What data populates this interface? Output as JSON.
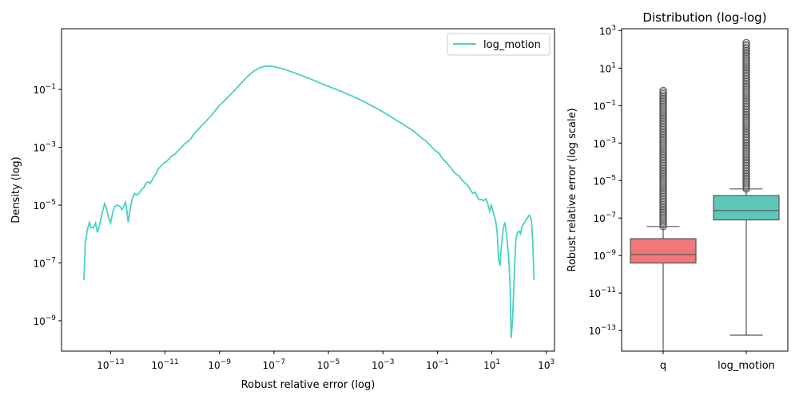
{
  "chart_data": [
    {
      "type": "line",
      "title": "",
      "xlabel": "Robust relative error (log)",
      "ylabel": "Density (log)",
      "xscale": "log",
      "yscale": "log",
      "xlim_exp": [
        -14.8,
        3.3
      ],
      "ylim_exp": [
        -10.05,
        1.1
      ],
      "xticks_exp": [
        -13,
        -11,
        -9,
        -7,
        -5,
        -3,
        -1,
        1,
        3
      ],
      "yticks_exp": [
        -9,
        -7,
        -5,
        -3,
        -1
      ],
      "grid": false,
      "legend": {
        "position": "top-right",
        "entries": [
          "log_motion"
        ]
      },
      "series": [
        {
          "name": "log_motion",
          "color": "#48d1c2",
          "points_log10": [
            [
              -13.98,
              -7.6
            ],
            [
              -13.93,
              -6.3
            ],
            [
              -13.85,
              -5.85
            ],
            [
              -13.78,
              -5.6
            ],
            [
              -13.72,
              -5.78
            ],
            [
              -13.62,
              -5.78
            ],
            [
              -13.55,
              -5.62
            ],
            [
              -13.48,
              -5.95
            ],
            [
              -13.38,
              -5.6
            ],
            [
              -13.3,
              -5.25
            ],
            [
              -13.22,
              -4.95
            ],
            [
              -13.15,
              -5.1
            ],
            [
              -13.08,
              -5.4
            ],
            [
              -13.0,
              -5.62
            ],
            [
              -12.92,
              -5.25
            ],
            [
              -12.85,
              -5.05
            ],
            [
              -12.75,
              -5.0
            ],
            [
              -12.65,
              -5.05
            ],
            [
              -12.58,
              -5.15
            ],
            [
              -12.52,
              -5.05
            ],
            [
              -12.45,
              -4.9
            ],
            [
              -12.4,
              -5.2
            ],
            [
              -12.35,
              -5.6
            ],
            [
              -12.28,
              -5.15
            ],
            [
              -12.2,
              -4.75
            ],
            [
              -12.12,
              -4.6
            ],
            [
              -12.05,
              -4.65
            ],
            [
              -11.98,
              -4.62
            ],
            [
              -11.92,
              -4.55
            ],
            [
              -11.85,
              -4.45
            ],
            [
              -11.78,
              -4.4
            ],
            [
              -11.7,
              -4.25
            ],
            [
              -11.62,
              -4.2
            ],
            [
              -11.55,
              -4.25
            ],
            [
              -11.48,
              -4.15
            ],
            [
              -11.4,
              -4.0
            ],
            [
              -11.32,
              -3.9
            ],
            [
              -11.25,
              -3.75
            ],
            [
              -11.15,
              -3.65
            ],
            [
              -11.05,
              -3.55
            ],
            [
              -10.95,
              -3.5
            ],
            [
              -10.85,
              -3.4
            ],
            [
              -10.75,
              -3.3
            ],
            [
              -10.65,
              -3.25
            ],
            [
              -10.55,
              -3.15
            ],
            [
              -10.45,
              -3.05
            ],
            [
              -10.35,
              -2.95
            ],
            [
              -10.25,
              -2.85
            ],
            [
              -10.15,
              -2.8
            ],
            [
              -10.05,
              -2.7
            ],
            [
              -9.95,
              -2.55
            ],
            [
              -9.85,
              -2.45
            ],
            [
              -9.75,
              -2.35
            ],
            [
              -9.6,
              -2.2
            ],
            [
              -9.45,
              -2.05
            ],
            [
              -9.3,
              -1.9
            ],
            [
              -9.15,
              -1.72
            ],
            [
              -9.0,
              -1.55
            ],
            [
              -8.85,
              -1.42
            ],
            [
              -8.7,
              -1.28
            ],
            [
              -8.55,
              -1.13
            ],
            [
              -8.4,
              -0.98
            ],
            [
              -8.25,
              -0.83
            ],
            [
              -8.1,
              -0.68
            ],
            [
              -7.95,
              -0.53
            ],
            [
              -7.8,
              -0.41
            ],
            [
              -7.65,
              -0.31
            ],
            [
              -7.5,
              -0.24
            ],
            [
              -7.35,
              -0.2
            ],
            [
              -7.2,
              -0.19
            ],
            [
              -7.05,
              -0.2
            ],
            [
              -6.9,
              -0.23
            ],
            [
              -6.7,
              -0.28
            ],
            [
              -6.5,
              -0.34
            ],
            [
              -6.3,
              -0.41
            ],
            [
              -6.1,
              -0.48
            ],
            [
              -5.9,
              -0.55
            ],
            [
              -5.7,
              -0.62
            ],
            [
              -5.5,
              -0.7
            ],
            [
              -5.3,
              -0.78
            ],
            [
              -5.1,
              -0.86
            ],
            [
              -4.9,
              -0.93
            ],
            [
              -4.7,
              -1.0
            ],
            [
              -4.5,
              -1.08
            ],
            [
              -4.3,
              -1.16
            ],
            [
              -4.1,
              -1.24
            ],
            [
              -3.9,
              -1.33
            ],
            [
              -3.7,
              -1.42
            ],
            [
              -3.5,
              -1.52
            ],
            [
              -3.3,
              -1.62
            ],
            [
              -3.1,
              -1.72
            ],
            [
              -2.9,
              -1.83
            ],
            [
              -2.7,
              -1.95
            ],
            [
              -2.5,
              -2.07
            ],
            [
              -2.3,
              -2.18
            ],
            [
              -2.1,
              -2.3
            ],
            [
              -1.9,
              -2.42
            ],
            [
              -1.7,
              -2.58
            ],
            [
              -1.55,
              -2.7
            ],
            [
              -1.4,
              -2.8
            ],
            [
              -1.25,
              -2.95
            ],
            [
              -1.1,
              -3.1
            ],
            [
              -0.95,
              -3.2
            ],
            [
              -0.8,
              -3.4
            ],
            [
              -0.65,
              -3.55
            ],
            [
              -0.5,
              -3.72
            ],
            [
              -0.35,
              -3.9
            ],
            [
              -0.2,
              -4.0
            ],
            [
              -0.05,
              -4.18
            ],
            [
              0.1,
              -4.3
            ],
            [
              0.2,
              -4.45
            ],
            [
              0.3,
              -4.6
            ],
            [
              0.4,
              -4.55
            ],
            [
              0.48,
              -4.75
            ],
            [
              0.55,
              -4.82
            ],
            [
              0.62,
              -4.8
            ],
            [
              0.7,
              -4.85
            ],
            [
              0.78,
              -4.78
            ],
            [
              0.85,
              -4.95
            ],
            [
              0.92,
              -5.2
            ],
            [
              0.98,
              -5.0
            ],
            [
              1.05,
              -5.25
            ],
            [
              1.1,
              -5.4
            ],
            [
              1.15,
              -5.6
            ],
            [
              1.2,
              -6.0
            ],
            [
              1.25,
              -6.9
            ],
            [
              1.3,
              -7.1
            ],
            [
              1.35,
              -6.4
            ],
            [
              1.42,
              -5.8
            ],
            [
              1.48,
              -5.6
            ],
            [
              1.55,
              -6.1
            ],
            [
              1.62,
              -6.8
            ],
            [
              1.67,
              -7.8
            ],
            [
              1.71,
              -9.6
            ],
            [
              1.76,
              -9.0
            ],
            [
              1.82,
              -7.5
            ],
            [
              1.88,
              -6.2
            ],
            [
              1.94,
              -5.95
            ],
            [
              2.0,
              -5.9
            ],
            [
              2.05,
              -6.0
            ],
            [
              2.1,
              -5.75
            ],
            [
              2.2,
              -5.6
            ],
            [
              2.3,
              -5.45
            ],
            [
              2.38,
              -5.35
            ],
            [
              2.45,
              -5.5
            ],
            [
              2.5,
              -6.2
            ],
            [
              2.55,
              -7.6
            ]
          ]
        }
      ]
    },
    {
      "type": "box",
      "title": "Distribution (log-log)",
      "xlabel": "",
      "ylabel": "Robust relative error (log scale)",
      "yscale": "log",
      "ylim_exp": [
        -14.1,
        3.1
      ],
      "yticks_exp": [
        -13,
        -11,
        -9,
        -7,
        -5,
        -3,
        -1,
        1,
        3
      ],
      "categories": [
        "q",
        "log_motion"
      ],
      "boxes": [
        {
          "category": "q",
          "color": "#f07878",
          "whisker_low_exp": -14.3,
          "q1_exp": -9.4,
          "median_exp": -8.95,
          "q3_exp": -8.1,
          "whisker_high_exp": -7.45,
          "outlier_range_exp": [
            -7.45,
            -0.2
          ]
        },
        {
          "category": "log_motion",
          "color": "#5cc8bc",
          "whisker_low_exp": -13.25,
          "q1_exp": -7.1,
          "median_exp": -6.6,
          "q3_exp": -5.8,
          "whisker_high_exp": -5.45,
          "outlier_range_exp": [
            -5.45,
            2.35
          ]
        }
      ]
    }
  ],
  "tick_base": "10",
  "tick_minus": "−"
}
